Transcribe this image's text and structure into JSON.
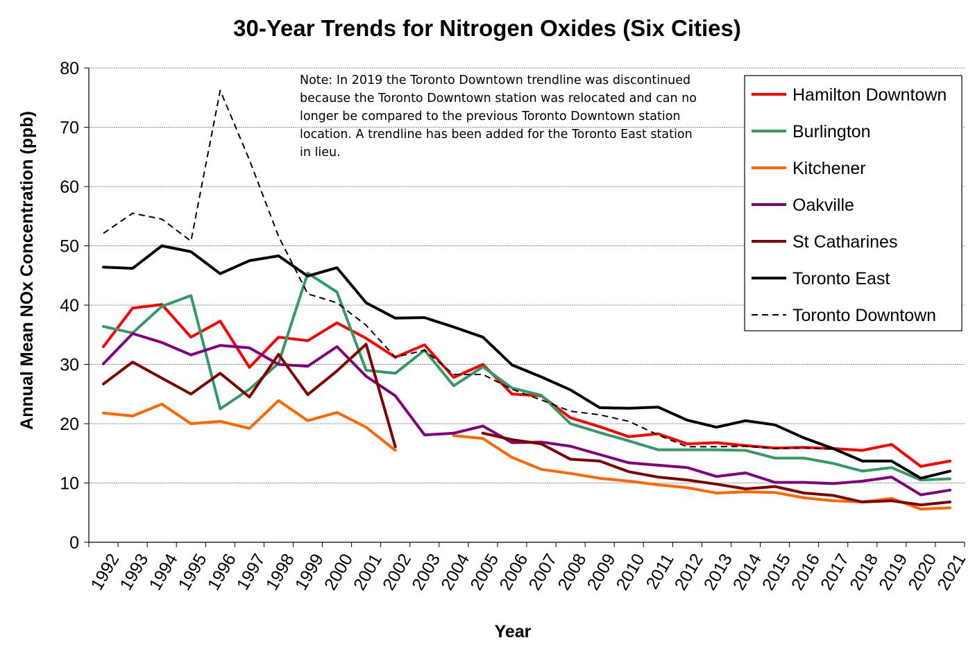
{
  "chart_data": {
    "type": "line",
    "title": "30-Year Trends for Nitrogen Oxides (Six Cities)",
    "xlabel": "Year",
    "ylabel": "Annual Mean NOx Concentration (ppb)",
    "ylim": [
      0,
      80
    ],
    "yticks": [
      "0",
      "10",
      "20",
      "30",
      "40",
      "50",
      "60",
      "70",
      "80"
    ],
    "grid": true,
    "legend_position": "top-right",
    "categories": [
      "1992",
      "1993",
      "1994",
      "1995",
      "1996",
      "1997",
      "1998",
      "1999",
      "2000",
      "2001",
      "2002",
      "2003",
      "2004",
      "2005",
      "2006",
      "2007",
      "2008",
      "2009",
      "2010",
      "2011",
      "2012",
      "2013",
      "2014",
      "2015",
      "2016",
      "2017",
      "2018",
      "2019",
      "2020",
      "2021"
    ],
    "note_lines": [
      "Note: In 2019 the Toronto Downtown trendline was discontinued",
      "because the Toronto Downtown station was relocated and can no",
      "longer be compared to the previous Toronto Downtown station",
      "location. A trendline has been added for the Toronto East station",
      "in lieu."
    ],
    "series": [
      {
        "name": "Hamilton Downtown",
        "color": "#ff0000",
        "dash": "solid",
        "values": [
          33.0,
          39.5,
          40.1,
          34.6,
          37.3,
          29.5,
          34.6,
          34.0,
          37.0,
          34.4,
          31.2,
          33.3,
          27.8,
          30.0,
          25.0,
          24.7,
          21.0,
          19.5,
          17.8,
          18.3,
          16.6,
          16.8,
          16.3,
          15.9,
          16.0,
          15.8,
          15.5,
          16.5,
          12.8,
          13.7
        ]
      },
      {
        "name": "Burlington",
        "color": "#339966",
        "dash": "solid",
        "values": [
          36.4,
          35.3,
          39.8,
          41.6,
          22.5,
          25.8,
          30.2,
          45.4,
          42.2,
          29.0,
          28.5,
          32.4,
          26.4,
          29.6,
          26.0,
          24.8,
          20.0,
          18.5,
          17.1,
          15.6,
          15.6,
          15.6,
          15.5,
          14.2,
          14.2,
          13.3,
          12.0,
          12.6,
          10.5,
          10.7
        ]
      },
      {
        "name": "Kitchener",
        "color": "#ff6600",
        "dash": "solid",
        "values": [
          21.8,
          21.3,
          23.3,
          20.0,
          20.4,
          19.2,
          23.9,
          20.5,
          21.9,
          19.4,
          15.5,
          null,
          18.0,
          17.5,
          14.3,
          12.3,
          11.6,
          10.8,
          10.3,
          9.7,
          9.2,
          8.3,
          8.5,
          8.4,
          7.5,
          7.0,
          6.8,
          7.4,
          5.6,
          5.8
        ]
      },
      {
        "name": "Oakville",
        "color": "#800080",
        "dash": "solid",
        "values": [
          30.1,
          35.2,
          33.7,
          31.6,
          33.2,
          32.8,
          30.0,
          29.7,
          33.0,
          28.0,
          24.7,
          18.1,
          18.4,
          19.6,
          16.8,
          16.9,
          16.2,
          14.8,
          13.4,
          13.0,
          12.6,
          11.1,
          11.7,
          10.1,
          10.1,
          9.9,
          10.3,
          11.0,
          8.0,
          8.8
        ]
      },
      {
        "name": "St Catharines",
        "color": "#800000",
        "dash": "solid",
        "values": [
          26.7,
          30.4,
          27.7,
          25.0,
          28.5,
          24.5,
          31.7,
          24.9,
          28.9,
          33.4,
          16.1,
          null,
          null,
          18.4,
          17.3,
          16.6,
          14.0,
          13.7,
          11.9,
          11.0,
          10.5,
          9.8,
          9.0,
          9.4,
          8.3,
          7.9,
          6.8,
          7.0,
          6.3,
          6.8
        ]
      },
      {
        "name": "Toronto East",
        "color": "#000000",
        "dash": "solid",
        "values": [
          46.4,
          46.2,
          50.0,
          49.0,
          45.3,
          47.5,
          48.3,
          44.9,
          46.3,
          40.4,
          37.8,
          37.9,
          36.3,
          34.6,
          29.9,
          27.9,
          25.7,
          22.7,
          22.6,
          22.8,
          20.6,
          19.4,
          20.5,
          19.8,
          17.6,
          15.8,
          13.7,
          13.7,
          10.8,
          12.0
        ]
      },
      {
        "name": "Toronto Downtown",
        "color": "#000000",
        "dash": "dashed",
        "values": [
          52.1,
          55.5,
          54.5,
          50.8,
          76.2,
          64.5,
          51.6,
          41.9,
          40.4,
          36.6,
          31.2,
          32.4,
          28.3,
          28.3,
          25.8,
          24.0,
          22.1,
          21.5,
          20.4,
          18.1,
          16.1,
          16.1,
          16.2,
          15.8,
          15.9,
          15.7,
          null,
          null,
          null,
          null
        ]
      }
    ]
  }
}
